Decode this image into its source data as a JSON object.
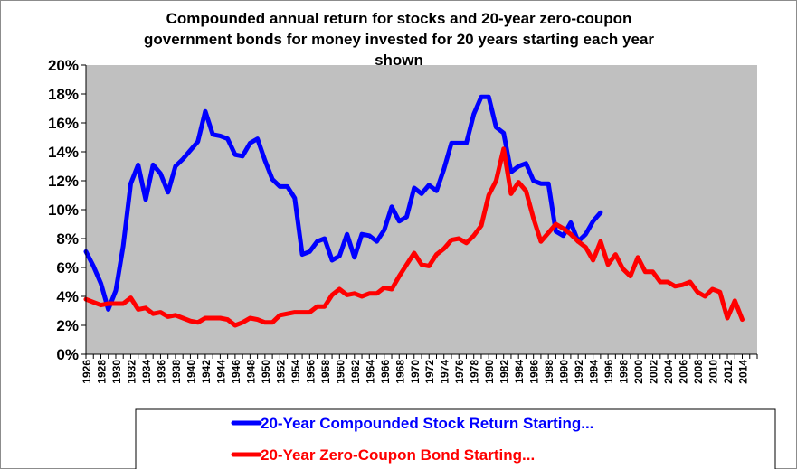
{
  "chart_data": {
    "type": "line",
    "title_lines": [
      "Compounded annual return for stocks and 20-year zero-coupon",
      "government bonds for money invested for 20 years starting each year",
      "shown"
    ],
    "xlabel": "",
    "ylabel": "",
    "ylim": [
      0,
      20
    ],
    "yticks": [
      "0%",
      "2%",
      "4%",
      "6%",
      "8%",
      "10%",
      "12%",
      "14%",
      "16%",
      "18%",
      "20%"
    ],
    "xlim": [
      1926,
      2016
    ],
    "xticks": [
      "1926",
      "1928",
      "1930",
      "1932",
      "1934",
      "1936",
      "1938",
      "1940",
      "1942",
      "1944",
      "1946",
      "1948",
      "1950",
      "1952",
      "1954",
      "1956",
      "1958",
      "1960",
      "1962",
      "1964",
      "1966",
      "1968",
      "1970",
      "1972",
      "1974",
      "1976",
      "1978",
      "1980",
      "1982",
      "1984",
      "1986",
      "1988",
      "1990",
      "1992",
      "1994",
      "1996",
      "1998",
      "2000",
      "2002",
      "2004",
      "2006",
      "2008",
      "2010",
      "2012",
      "2014"
    ],
    "grid": false,
    "plot_background": "#c0c0c0",
    "legend_position": "bottom",
    "series": [
      {
        "name": "20-Year Compounded Stock Return Starting...",
        "color": "#0000ff",
        "x": [
          1926,
          1927,
          1928,
          1929,
          1930,
          1931,
          1932,
          1933,
          1934,
          1935,
          1936,
          1937,
          1938,
          1939,
          1940,
          1941,
          1942,
          1943,
          1944,
          1945,
          1946,
          1947,
          1948,
          1949,
          1950,
          1951,
          1952,
          1953,
          1954,
          1955,
          1956,
          1957,
          1958,
          1959,
          1960,
          1961,
          1962,
          1963,
          1964,
          1965,
          1966,
          1967,
          1968,
          1969,
          1970,
          1971,
          1972,
          1973,
          1974,
          1975,
          1976,
          1977,
          1978,
          1979,
          1980,
          1981,
          1982,
          1983,
          1984,
          1985,
          1986,
          1987,
          1988,
          1989,
          1990,
          1991,
          1992,
          1993,
          1994,
          1995
        ],
        "y": [
          7.1,
          6.1,
          4.9,
          3.1,
          4.4,
          7.5,
          11.8,
          13.1,
          10.7,
          13.1,
          12.5,
          11.2,
          13.0,
          13.5,
          14.1,
          14.7,
          16.8,
          15.2,
          15.1,
          14.9,
          13.8,
          13.7,
          14.6,
          14.9,
          13.4,
          12.1,
          11.6,
          11.6,
          10.8,
          6.9,
          7.1,
          7.8,
          8.0,
          6.5,
          6.8,
          8.3,
          6.7,
          8.3,
          8.2,
          7.8,
          8.6,
          10.2,
          9.2,
          9.5,
          11.5,
          11.1,
          11.7,
          11.3,
          12.8,
          14.6,
          14.6,
          14.6,
          16.6,
          17.8,
          17.8,
          15.7,
          15.3,
          12.6,
          13.0,
          13.2,
          12.0,
          11.8,
          11.8,
          8.5,
          8.2,
          9.1,
          7.8,
          8.3,
          9.2,
          9.8
        ]
      },
      {
        "name": "20-Year Zero-Coupon Bond Starting...",
        "color": "#ff0000",
        "x": [
          1926,
          1927,
          1928,
          1929,
          1930,
          1931,
          1932,
          1933,
          1934,
          1935,
          1936,
          1937,
          1938,
          1939,
          1940,
          1941,
          1942,
          1943,
          1944,
          1945,
          1946,
          1947,
          1948,
          1949,
          1950,
          1951,
          1952,
          1953,
          1954,
          1955,
          1956,
          1957,
          1958,
          1959,
          1960,
          1961,
          1962,
          1963,
          1964,
          1965,
          1966,
          1967,
          1968,
          1969,
          1970,
          1971,
          1972,
          1973,
          1974,
          1975,
          1976,
          1977,
          1978,
          1979,
          1980,
          1981,
          1982,
          1983,
          1984,
          1985,
          1986,
          1987,
          1988,
          1989,
          1990,
          1991,
          1992,
          1993,
          1994,
          1995,
          1996,
          1997,
          1998,
          1999,
          2000,
          2001,
          2002,
          2003,
          2004,
          2005,
          2006,
          2007,
          2008,
          2009,
          2010,
          2011,
          2012,
          2013,
          2014
        ],
        "y": [
          3.8,
          3.6,
          3.4,
          3.5,
          3.5,
          3.5,
          3.9,
          3.1,
          3.2,
          2.8,
          2.9,
          2.6,
          2.7,
          2.5,
          2.3,
          2.2,
          2.5,
          2.5,
          2.5,
          2.4,
          2.0,
          2.2,
          2.5,
          2.4,
          2.2,
          2.2,
          2.7,
          2.8,
          2.9,
          2.9,
          2.9,
          3.3,
          3.3,
          4.1,
          4.5,
          4.1,
          4.2,
          4.0,
          4.2,
          4.2,
          4.6,
          4.5,
          5.4,
          6.2,
          7.0,
          6.2,
          6.1,
          6.9,
          7.3,
          7.9,
          8.0,
          7.7,
          8.2,
          8.9,
          11.0,
          12.0,
          14.2,
          11.1,
          11.9,
          11.3,
          9.4,
          7.8,
          8.4,
          9.0,
          8.7,
          8.3,
          7.8,
          7.4,
          6.5,
          7.8,
          6.2,
          6.9,
          5.9,
          5.4,
          6.7,
          5.7,
          5.7,
          5.0,
          5.0,
          4.7,
          4.8,
          5.0,
          4.3,
          4.0,
          4.5,
          4.3,
          2.5,
          3.7,
          2.4
        ]
      }
    ]
  }
}
